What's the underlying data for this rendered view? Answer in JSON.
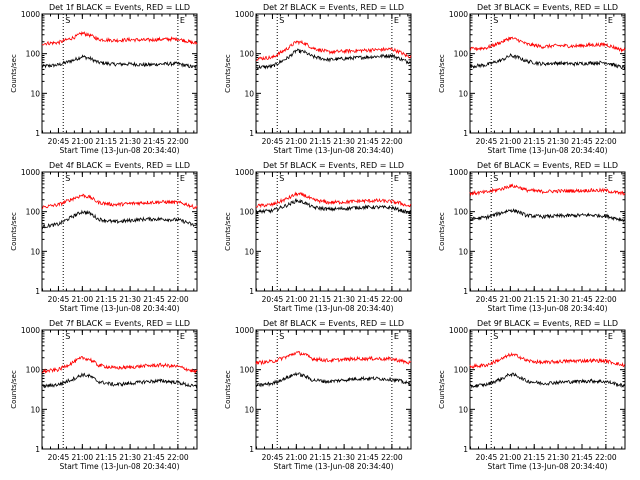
{
  "colors": {
    "background": "#ffffff",
    "events": "#000000",
    "lld": "#ff0000",
    "axis": "#000000"
  },
  "chart_data": {
    "type": "line",
    "rows": 3,
    "cols": 3,
    "xlabel": "Start Time (13-Jun-08 20:34:40)",
    "ylabel": "Counts/sec",
    "xlim": [
      "20:34:40",
      "22:12:00"
    ],
    "ylim": [
      1,
      1000
    ],
    "ylog": true,
    "y_ticks": [
      1,
      10,
      100,
      1000
    ],
    "y_tick_labels": [
      "1",
      "10",
      "100",
      "1000"
    ],
    "x_ticks": [
      "20:45",
      "21:00",
      "21:15",
      "21:30",
      "21:45",
      "22:00"
    ],
    "x_tick_labels": [
      "20:45",
      "21:00",
      "21:15",
      "21:30",
      "21:45",
      "22:00"
    ],
    "markers": {
      "times": [
        "20:48",
        "22:00"
      ],
      "label_s": "S",
      "label_e": "E"
    },
    "sample_times": [
      "20:35",
      "20:45",
      "20:55",
      "21:00",
      "21:05",
      "21:10",
      "21:20",
      "21:30",
      "21:40",
      "21:50",
      "22:00",
      "22:05",
      "22:10"
    ],
    "panels": [
      {
        "title": "Det 1f BLACK = Events, RED = LLD",
        "series": [
          {
            "values": [
              48,
              52,
              70,
              85,
              75,
              60,
              54,
              55,
              52,
              55,
              56,
              50,
              46
            ]
          },
          {
            "values": [
              180,
              190,
              260,
              330,
              290,
              230,
              215,
              225,
              220,
              230,
              235,
              210,
              185
            ]
          }
        ]
      },
      {
        "title": "Det 2f BLACK = Events, RED = LLD",
        "series": [
          {
            "values": [
              45,
              48,
              80,
              120,
              110,
              85,
              70,
              75,
              80,
              85,
              90,
              75,
              62
            ]
          },
          {
            "values": [
              75,
              80,
              140,
              200,
              185,
              140,
              110,
              115,
              120,
              125,
              130,
              110,
              85
            ]
          }
        ]
      },
      {
        "title": "Det 3f BLACK = Events, RED = LLD",
        "series": [
          {
            "values": [
              48,
              52,
              70,
              90,
              80,
              65,
              55,
              58,
              55,
              58,
              60,
              52,
              45
            ]
          },
          {
            "values": [
              130,
              140,
              200,
              250,
              220,
              175,
              150,
              160,
              155,
              165,
              170,
              145,
              125
            ]
          }
        ]
      },
      {
        "title": "Det 4f BLACK = Events, RED = LLD",
        "series": [
          {
            "values": [
              42,
              48,
              80,
              100,
              90,
              65,
              55,
              60,
              65,
              65,
              62,
              55,
              45
            ]
          },
          {
            "values": [
              130,
              150,
              220,
              260,
              230,
              170,
              150,
              160,
              170,
              175,
              170,
              155,
              130
            ]
          }
        ]
      },
      {
        "title": "Det 5f BLACK = Events, RED = LLD",
        "series": [
          {
            "values": [
              100,
              105,
              150,
              190,
              170,
              130,
              115,
              120,
              128,
              130,
              125,
              110,
              95
            ]
          },
          {
            "values": [
              140,
              150,
              220,
              280,
              260,
              200,
              170,
              175,
              185,
              190,
              180,
              165,
              140
            ]
          }
        ]
      },
      {
        "title": "Det 6f BLACK = Events, RED = LLD",
        "series": [
          {
            "values": [
              65,
              72,
              95,
              110,
              100,
              80,
              75,
              78,
              80,
              82,
              78,
              70,
              62
            ]
          },
          {
            "values": [
              290,
              310,
              380,
              450,
              420,
              350,
              320,
              330,
              335,
              345,
              340,
              310,
              290
            ]
          }
        ]
      },
      {
        "title": "Det 7f BLACK = Events, RED = LLD",
        "series": [
          {
            "values": [
              38,
              42,
              60,
              75,
              68,
              50,
              42,
              45,
              50,
              52,
              48,
              42,
              38
            ]
          },
          {
            "values": [
              90,
              100,
              160,
              200,
              180,
              130,
              110,
              115,
              125,
              130,
              120,
              105,
              90
            ]
          }
        ]
      },
      {
        "title": "Det 8f BLACK = Events, RED = LLD",
        "series": [
          {
            "values": [
              40,
              45,
              65,
              80,
              70,
              55,
              50,
              55,
              60,
              60,
              57,
              52,
              45
            ]
          },
          {
            "values": [
              150,
              160,
              220,
              270,
              245,
              190,
              170,
              180,
              190,
              190,
              185,
              170,
              150
            ]
          }
        ]
      },
      {
        "title": "Det 9f BLACK = Events, RED = LLD",
        "series": [
          {
            "values": [
              38,
              42,
              60,
              78,
              68,
              52,
              45,
              48,
              50,
              52,
              50,
              45,
              40
            ]
          },
          {
            "values": [
              120,
              130,
              190,
              240,
              220,
              170,
              150,
              160,
              165,
              170,
              165,
              150,
              130
            ]
          }
        ]
      }
    ]
  }
}
